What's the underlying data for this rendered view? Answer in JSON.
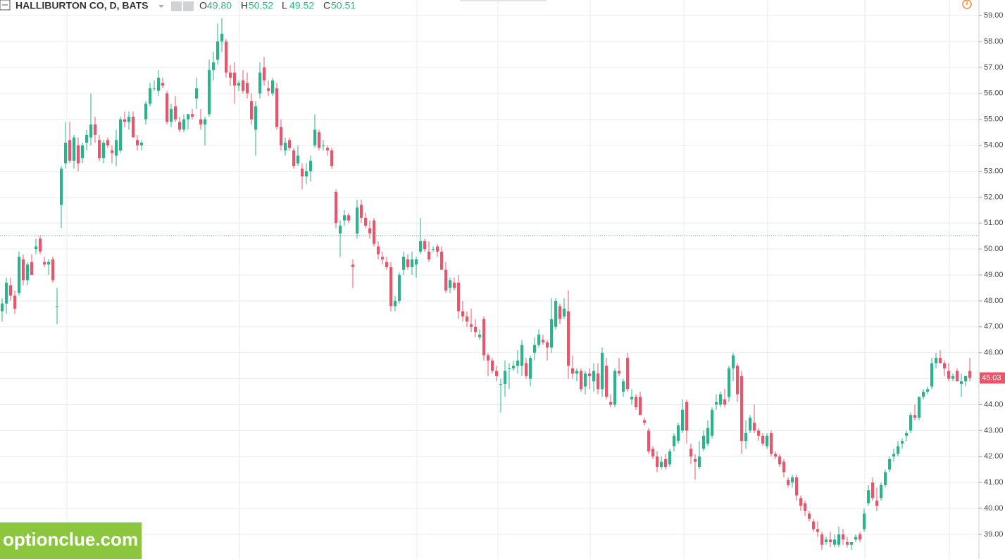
{
  "chart_data": {
    "type": "candlestick",
    "title": "HALLIBURTON CO, D, BATS",
    "ohlc_legend": [
      {
        "label": "O",
        "value": 49.8,
        "value_label": "49.80"
      },
      {
        "label": "H",
        "value": 50.52,
        "value_label": "50.52"
      },
      {
        "label": "L",
        "value": 49.52,
        "value_label": "49.52"
      },
      {
        "label": "C",
        "value": 50.51,
        "value_label": "50.51"
      }
    ],
    "last_price": {
      "value": 45.03,
      "label": "45.03"
    },
    "watermark": "optionclue.com",
    "up_color": "#26b58c",
    "down_color": "#ef5369",
    "grid": true,
    "ylim": [
      38.05,
      59.6
    ],
    "yticks": [
      {
        "value": 39,
        "label": "39.00"
      },
      {
        "value": 40,
        "label": "40.00"
      },
      {
        "value": 41,
        "label": "41.00"
      },
      {
        "value": 42,
        "label": "42.00"
      },
      {
        "value": 43,
        "label": "43.00"
      },
      {
        "value": 44,
        "label": "44.00"
      },
      {
        "value": 45,
        "label": "45.00"
      },
      {
        "value": 46,
        "label": "46.00"
      },
      {
        "value": 47,
        "label": "47.00"
      },
      {
        "value": 48,
        "label": "48.00"
      },
      {
        "value": 49,
        "label": "49.00"
      },
      {
        "value": 50,
        "label": "50.00"
      },
      {
        "value": 51,
        "label": "51.00"
      },
      {
        "value": 52,
        "label": "52.00"
      },
      {
        "value": 53,
        "label": "53.00"
      },
      {
        "value": 54,
        "label": "54.00"
      },
      {
        "value": 55,
        "label": "55.00"
      },
      {
        "value": 56,
        "label": "56.00"
      },
      {
        "value": 57,
        "label": "57.00"
      },
      {
        "value": 58,
        "label": "58.00"
      },
      {
        "value": 59,
        "label": "59.00"
      }
    ],
    "ohlc": [
      [
        47.6,
        48.1,
        47.2,
        47.9
      ],
      [
        47.9,
        48.9,
        47.5,
        48.7
      ],
      [
        48.6,
        48.9,
        48.0,
        48.2
      ],
      [
        48.2,
        48.4,
        47.5,
        47.7
      ],
      [
        48.3,
        49.9,
        48.2,
        49.7
      ],
      [
        49.6,
        49.8,
        48.6,
        48.8
      ],
      [
        48.8,
        49.5,
        48.6,
        49.4
      ],
      [
        49.5,
        49.8,
        49.0,
        49.0
      ],
      [
        50.0,
        50.4,
        49.8,
        50.1
      ],
      [
        50.4,
        50.5,
        49.8,
        49.9
      ],
      [
        49.5,
        49.7,
        49.3,
        49.4
      ],
      [
        49.4,
        49.6,
        49.0,
        49.5
      ],
      [
        49.6,
        49.7,
        48.7,
        48.8
      ],
      [
        47.8,
        48.5,
        47.1,
        47.8
      ],
      [
        51.7,
        53.2,
        50.8,
        53.1
      ],
      [
        53.3,
        54.9,
        53.1,
        54.1
      ],
      [
        54.2,
        54.9,
        53.3,
        53.4
      ],
      [
        53.4,
        54.4,
        53.1,
        54.3
      ],
      [
        54.0,
        54.3,
        53.0,
        53.3
      ],
      [
        53.5,
        54.1,
        53.3,
        54.0
      ],
      [
        54.1,
        54.6,
        53.8,
        54.4
      ],
      [
        54.3,
        56.0,
        54.0,
        54.8
      ],
      [
        54.8,
        55.1,
        54.1,
        54.4
      ],
      [
        54.2,
        54.4,
        53.4,
        53.5
      ],
      [
        53.5,
        54.2,
        53.3,
        54.1
      ],
      [
        54.2,
        54.3,
        53.9,
        54.0
      ],
      [
        53.8,
        54.0,
        53.3,
        53.7
      ],
      [
        53.6,
        54.6,
        53.2,
        54.2
      ],
      [
        53.8,
        55.1,
        53.7,
        55.0
      ],
      [
        55.0,
        55.3,
        54.7,
        54.9
      ],
      [
        54.9,
        55.3,
        54.6,
        55.1
      ],
      [
        55.1,
        55.3,
        54.3,
        54.3
      ],
      [
        54.2,
        54.4,
        53.8,
        54.0
      ],
      [
        54.0,
        54.2,
        53.8,
        54.1
      ],
      [
        55.0,
        55.7,
        54.8,
        55.6
      ],
      [
        55.6,
        56.4,
        55.5,
        56.2
      ],
      [
        56.2,
        56.5,
        56.1,
        56.2
      ],
      [
        56.1,
        56.9,
        55.9,
        56.6
      ],
      [
        56.4,
        56.6,
        56.2,
        56.3
      ],
      [
        56.0,
        56.1,
        54.8,
        54.9
      ],
      [
        54.9,
        55.6,
        54.7,
        55.4
      ],
      [
        55.5,
        55.9,
        54.9,
        55.0
      ],
      [
        54.9,
        55.1,
        54.5,
        54.6
      ],
      [
        54.6,
        55.2,
        54.5,
        55.0
      ],
      [
        55.0,
        55.2,
        54.6,
        55.2
      ],
      [
        55.2,
        55.4,
        55.0,
        55.1
      ],
      [
        55.8,
        56.6,
        55.4,
        56.2
      ],
      [
        55.0,
        55.4,
        54.6,
        54.8
      ],
      [
        54.8,
        55.1,
        54.0,
        55.0
      ],
      [
        55.2,
        57.3,
        55.1,
        56.9
      ],
      [
        56.9,
        57.6,
        56.5,
        57.2
      ],
      [
        57.3,
        58.7,
        57.1,
        58.0
      ],
      [
        58.0,
        58.9,
        57.6,
        58.3
      ],
      [
        58.0,
        58.1,
        56.6,
        56.8
      ],
      [
        56.8,
        57.1,
        56.3,
        56.6
      ],
      [
        56.8,
        57.2,
        55.6,
        56.3
      ],
      [
        56.3,
        56.5,
        56.1,
        56.4
      ],
      [
        56.5,
        56.9,
        56.0,
        56.1
      ],
      [
        56.4,
        56.8,
        55.8,
        56.0
      ],
      [
        55.7,
        56.0,
        54.8,
        55.0
      ],
      [
        54.6,
        55.7,
        53.6,
        55.5
      ],
      [
        56.0,
        57.2,
        55.8,
        56.8
      ],
      [
        57.0,
        57.4,
        56.3,
        56.5
      ],
      [
        56.2,
        56.5,
        55.9,
        56.1
      ],
      [
        56.0,
        56.6,
        55.9,
        56.5
      ],
      [
        56.2,
        56.4,
        54.6,
        54.7
      ],
      [
        54.7,
        55.0,
        53.8,
        54.0
      ],
      [
        53.8,
        54.3,
        53.6,
        54.1
      ],
      [
        54.2,
        54.3,
        53.8,
        53.9
      ],
      [
        53.8,
        53.9,
        53.1,
        53.2
      ],
      [
        53.3,
        54.0,
        53.2,
        53.6
      ],
      [
        53.1,
        53.3,
        52.3,
        52.8
      ],
      [
        52.8,
        53.3,
        52.5,
        53.0
      ],
      [
        53.0,
        53.6,
        52.6,
        53.4
      ],
      [
        54.0,
        55.2,
        53.9,
        54.6
      ],
      [
        54.5,
        54.6,
        53.8,
        53.9
      ],
      [
        54.0,
        54.2,
        53.8,
        54.0
      ],
      [
        53.9,
        54.0,
        53.6,
        53.8
      ],
      [
        53.8,
        53.9,
        53.1,
        53.2
      ],
      [
        52.2,
        52.3,
        50.8,
        51.0
      ],
      [
        50.6,
        51.1,
        49.7,
        50.9
      ],
      [
        51.1,
        51.5,
        50.9,
        51.3
      ],
      [
        51.3,
        51.4,
        51.0,
        51.1
      ],
      [
        49.4,
        49.6,
        48.5,
        49.3
      ],
      [
        50.6,
        51.9,
        50.4,
        51.6
      ],
      [
        51.7,
        51.9,
        51.0,
        51.2
      ],
      [
        51.2,
        51.4,
        50.8,
        50.9
      ],
      [
        50.8,
        51.1,
        50.4,
        50.6
      ],
      [
        51.1,
        51.2,
        50.1,
        50.2
      ],
      [
        50.1,
        50.3,
        49.6,
        49.8
      ],
      [
        49.7,
        49.9,
        49.4,
        49.6
      ],
      [
        49.5,
        49.7,
        49.2,
        49.3
      ],
      [
        49.3,
        49.5,
        47.6,
        47.8
      ],
      [
        47.8,
        48.2,
        47.6,
        48.0
      ],
      [
        48.0,
        49.1,
        47.9,
        49.0
      ],
      [
        49.2,
        49.9,
        49.0,
        49.7
      ],
      [
        49.6,
        49.8,
        49.2,
        49.3
      ],
      [
        49.3,
        49.9,
        49.0,
        49.6
      ],
      [
        49.4,
        49.7,
        48.9,
        49.6
      ],
      [
        49.9,
        51.2,
        49.8,
        50.3
      ],
      [
        50.3,
        50.4,
        49.9,
        50.0
      ],
      [
        49.9,
        50.3,
        49.5,
        49.6
      ],
      [
        50.0,
        50.1,
        49.9,
        50.0
      ],
      [
        50.1,
        50.2,
        49.7,
        49.9
      ],
      [
        49.9,
        50.1,
        49.2,
        49.2
      ],
      [
        49.2,
        49.5,
        48.3,
        48.4
      ],
      [
        48.5,
        48.9,
        48.3,
        48.8
      ],
      [
        48.7,
        48.9,
        48.4,
        48.5
      ],
      [
        48.7,
        49.0,
        47.3,
        47.6
      ],
      [
        47.6,
        48.0,
        47.2,
        47.4
      ],
      [
        47.4,
        47.6,
        47.0,
        47.2
      ],
      [
        47.1,
        47.7,
        46.8,
        47.0
      ],
      [
        47.0,
        47.3,
        46.6,
        46.8
      ],
      [
        46.6,
        46.9,
        46.5,
        46.7
      ],
      [
        47.3,
        47.4,
        45.7,
        45.9
      ],
      [
        45.9,
        46.0,
        45.1,
        45.7
      ],
      [
        45.7,
        45.8,
        45.2,
        45.3
      ],
      [
        45.3,
        45.5,
        44.9,
        45.1
      ],
      [
        44.8,
        45.0,
        43.7,
        44.8
      ],
      [
        44.8,
        45.7,
        44.3,
        45.3
      ],
      [
        45.4,
        45.6,
        44.6,
        45.4
      ],
      [
        45.4,
        45.7,
        45.3,
        45.5
      ],
      [
        45.5,
        46.1,
        45.2,
        45.7
      ],
      [
        45.5,
        46.5,
        45.1,
        46.3
      ],
      [
        45.6,
        45.8,
        45.0,
        45.1
      ],
      [
        45.0,
        45.9,
        44.7,
        45.8
      ],
      [
        46.0,
        46.6,
        45.7,
        46.3
      ],
      [
        46.3,
        46.9,
        46.2,
        46.7
      ],
      [
        46.5,
        46.7,
        46.3,
        46.4
      ],
      [
        46.4,
        46.5,
        45.7,
        46.2
      ],
      [
        46.2,
        48.1,
        46.0,
        47.3
      ],
      [
        47.0,
        48.1,
        46.9,
        48.0
      ],
      [
        47.8,
        47.9,
        47.1,
        47.3
      ],
      [
        47.4,
        48.1,
        47.3,
        47.7
      ],
      [
        47.6,
        48.4,
        45.0,
        45.5
      ],
      [
        45.4,
        45.9,
        45.0,
        45.2
      ],
      [
        45.2,
        45.4,
        44.9,
        45.3
      ],
      [
        45.3,
        45.4,
        44.5,
        44.6
      ],
      [
        44.7,
        45.3,
        44.4,
        45.2
      ],
      [
        45.2,
        45.4,
        44.6,
        45.1
      ],
      [
        44.9,
        45.6,
        44.5,
        45.3
      ],
      [
        45.2,
        45.6,
        44.4,
        44.6
      ],
      [
        44.6,
        46.2,
        44.3,
        46.0
      ],
      [
        45.5,
        45.8,
        44.2,
        44.3
      ],
      [
        44.1,
        44.4,
        43.9,
        44.0
      ],
      [
        44.0,
        45.4,
        43.9,
        45.3
      ],
      [
        45.3,
        45.8,
        45.1,
        45.2
      ],
      [
        44.5,
        45.0,
        44.3,
        44.9
      ],
      [
        45.8,
        46.0,
        44.5,
        44.6
      ],
      [
        44.2,
        44.6,
        44.0,
        44.3
      ],
      [
        44.3,
        44.4,
        43.8,
        43.9
      ],
      [
        44.3,
        44.5,
        43.6,
        43.6
      ],
      [
        43.4,
        43.5,
        43.2,
        43.3
      ],
      [
        43.0,
        43.1,
        42.1,
        42.2
      ],
      [
        42.3,
        42.4,
        41.9,
        42.0
      ],
      [
        42.0,
        42.2,
        41.4,
        41.6
      ],
      [
        41.6,
        42.0,
        41.5,
        41.8
      ],
      [
        41.9,
        42.1,
        41.5,
        41.6
      ],
      [
        41.7,
        42.3,
        41.6,
        42.2
      ],
      [
        42.4,
        42.9,
        42.2,
        42.8
      ],
      [
        42.6,
        43.3,
        42.5,
        43.2
      ],
      [
        43.0,
        44.2,
        42.9,
        43.8
      ],
      [
        44.1,
        44.2,
        42.5,
        43.0
      ],
      [
        42.3,
        42.5,
        41.7,
        42.0
      ],
      [
        41.9,
        42.1,
        41.1,
        41.8
      ],
      [
        41.6,
        42.6,
        41.5,
        42.0
      ],
      [
        42.3,
        43.0,
        42.2,
        42.8
      ],
      [
        42.5,
        43.4,
        42.4,
        43.1
      ],
      [
        42.8,
        43.9,
        42.7,
        43.8
      ],
      [
        44.0,
        44.4,
        43.8,
        44.1
      ],
      [
        44.0,
        44.5,
        43.9,
        44.4
      ],
      [
        44.2,
        44.6,
        43.9,
        44.0
      ],
      [
        44.3,
        45.5,
        44.1,
        45.4
      ],
      [
        45.4,
        46.0,
        44.9,
        45.9
      ],
      [
        45.5,
        45.6,
        44.1,
        44.4
      ],
      [
        45.1,
        45.3,
        42.1,
        42.6
      ],
      [
        42.6,
        43.4,
        42.3,
        42.9
      ],
      [
        43.0,
        43.6,
        42.9,
        43.5
      ],
      [
        43.3,
        44.0,
        42.9,
        43.0
      ],
      [
        43.0,
        43.1,
        42.6,
        42.8
      ],
      [
        42.8,
        42.9,
        42.4,
        42.5
      ],
      [
        42.4,
        42.9,
        42.3,
        42.8
      ],
      [
        42.9,
        43.0,
        42.0,
        42.1
      ],
      [
        42.1,
        42.2,
        41.9,
        42.0
      ],
      [
        42.0,
        42.1,
        41.6,
        41.7
      ],
      [
        41.8,
        41.9,
        41.2,
        41.4
      ],
      [
        41.1,
        41.2,
        40.8,
        40.9
      ],
      [
        41.0,
        41.3,
        40.8,
        41.2
      ],
      [
        41.2,
        41.3,
        40.3,
        40.5
      ],
      [
        40.4,
        40.5,
        39.9,
        40.1
      ],
      [
        40.2,
        40.3,
        39.7,
        39.9
      ],
      [
        39.8,
        39.9,
        39.5,
        39.6
      ],
      [
        39.5,
        39.6,
        39.1,
        39.2
      ],
      [
        39.2,
        39.5,
        38.9,
        39.1
      ],
      [
        39.0,
        39.1,
        38.4,
        38.6
      ],
      [
        38.7,
        38.9,
        38.6,
        38.8
      ],
      [
        38.8,
        39.1,
        38.5,
        38.7
      ],
      [
        38.6,
        39.0,
        38.5,
        38.8
      ],
      [
        38.6,
        39.3,
        38.5,
        39.0
      ],
      [
        39.0,
        39.2,
        38.6,
        38.8
      ],
      [
        38.7,
        38.9,
        38.5,
        38.6
      ],
      [
        38.6,
        38.7,
        38.4,
        38.7
      ],
      [
        38.8,
        39.0,
        38.7,
        38.9
      ],
      [
        39.0,
        39.1,
        38.7,
        38.8
      ],
      [
        39.2,
        40.0,
        39.1,
        39.8
      ],
      [
        40.2,
        40.9,
        40.1,
        40.7
      ],
      [
        41.0,
        41.2,
        40.3,
        40.4
      ],
      [
        40.3,
        40.8,
        39.9,
        40.1
      ],
      [
        40.4,
        41.0,
        40.3,
        40.9
      ],
      [
        40.9,
        41.5,
        40.8,
        41.4
      ],
      [
        41.5,
        42.0,
        41.4,
        41.9
      ],
      [
        42.0,
        42.3,
        41.8,
        42.1
      ],
      [
        42.1,
        42.6,
        42.0,
        42.4
      ],
      [
        42.5,
        42.7,
        42.3,
        42.6
      ],
      [
        42.8,
        43.0,
        42.6,
        42.9
      ],
      [
        43.0,
        43.7,
        42.9,
        43.6
      ],
      [
        43.6,
        44.0,
        43.4,
        43.5
      ],
      [
        43.5,
        44.3,
        43.4,
        44.3
      ],
      [
        44.3,
        44.6,
        44.2,
        44.5
      ],
      [
        44.5,
        44.7,
        44.4,
        44.6
      ],
      [
        44.7,
        45.8,
        44.6,
        45.6
      ],
      [
        45.6,
        46.0,
        45.4,
        45.8
      ],
      [
        45.8,
        46.1,
        45.6,
        45.6
      ],
      [
        45.6,
        45.7,
        45.1,
        45.4
      ],
      [
        45.3,
        45.6,
        44.9,
        45.0
      ],
      [
        45.0,
        45.2,
        44.9,
        45.1
      ],
      [
        45.3,
        45.4,
        44.9,
        44.9
      ],
      [
        44.8,
        45.2,
        44.3,
        44.9
      ],
      [
        44.9,
        45.1,
        44.7,
        45.1
      ],
      [
        45.3,
        45.8,
        44.9,
        45.03
      ]
    ]
  }
}
